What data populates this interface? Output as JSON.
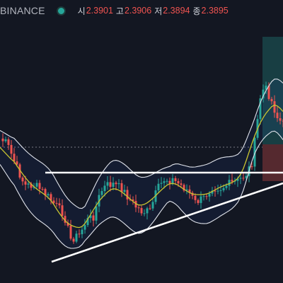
{
  "header": {
    "exchange": "BINANCE",
    "open_label": "시",
    "open_value": "2.3901",
    "high_label": "고",
    "high_value": "2.3906",
    "low_label": "저",
    "low_value": "2.3894",
    "close_label": "종",
    "close_value": "2.3895"
  },
  "colors": {
    "background": "#131722",
    "up": "#26a69a",
    "down": "#ef5350",
    "ma": "#c9c431",
    "bands": "#e0e3eb",
    "trendline": "#ffffff"
  },
  "icons": {
    "status": "market-open-dot-icon"
  }
}
